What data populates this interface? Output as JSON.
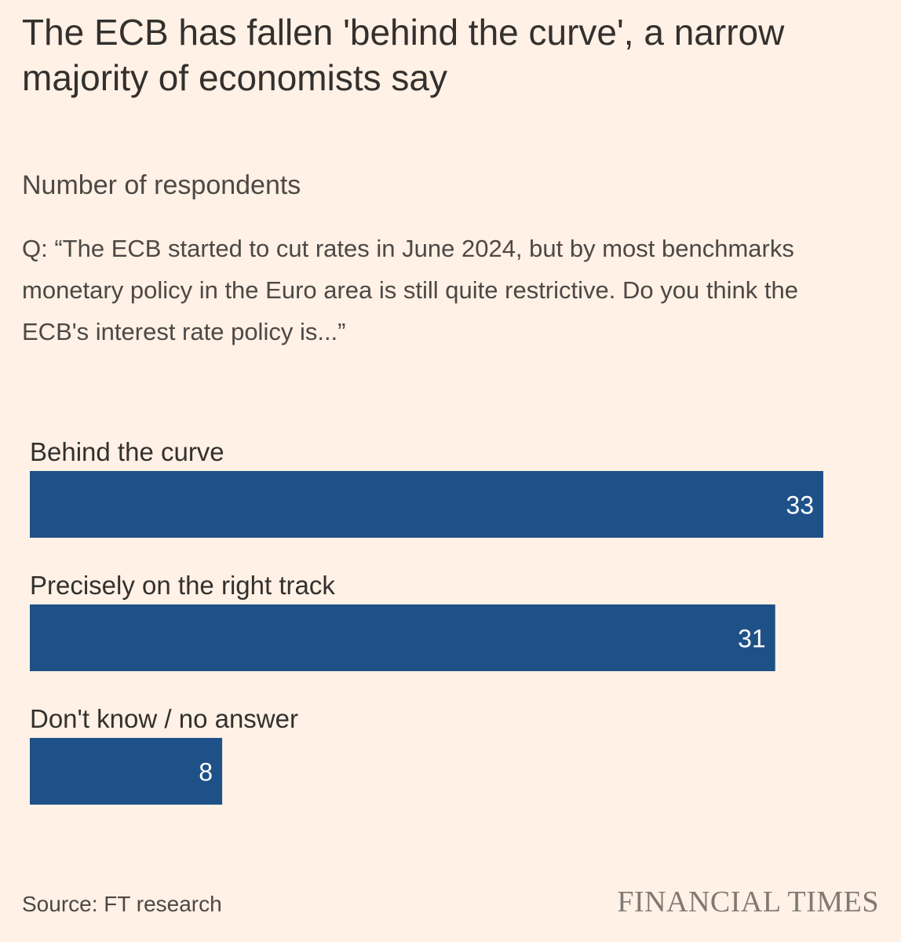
{
  "title": "The ECB has fallen 'behind the curve', a narrow majority of economists say",
  "subtitle": "Number of respondents",
  "question": "Q: “The ECB started to cut rates in June 2024, but by most benchmarks monetary policy in the Euro area is still quite restrictive. Do you think the ECB's interest rate policy is...”",
  "source": "Source: FT research",
  "brand": "FINANCIAL TIMES",
  "colors": {
    "background": "#fff1e5",
    "bar": "#1f5189",
    "bar_label": "#ffffff",
    "text": "#33302e"
  },
  "chart_data": {
    "type": "bar",
    "orientation": "horizontal",
    "categories": [
      "Behind the curve",
      "Precisely on the right track",
      "Don't know / no answer"
    ],
    "values": [
      33,
      31,
      8
    ],
    "title": "The ECB has fallen 'behind the curve', a narrow majority of economists say",
    "subtitle": "Number of respondents",
    "data_labels": true,
    "grid": false,
    "xlim": [
      0,
      33
    ]
  }
}
